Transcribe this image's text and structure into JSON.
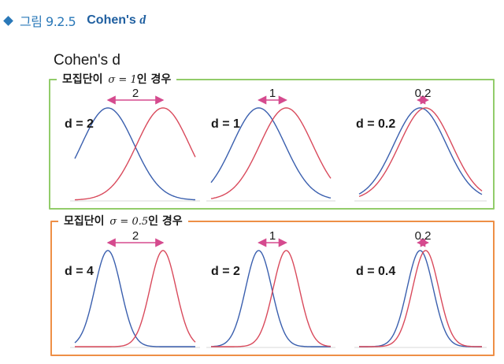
{
  "header": {
    "figure_label": "그림 9.2.5",
    "title_prefix": "Cohen's",
    "title_symbol": "d"
  },
  "main_title": "Cohen's d",
  "colors": {
    "curve_a": "#3a5fae",
    "curve_b": "#d94a5c",
    "arrow": "#d54a8e",
    "panel_1_border": "#92cc6a",
    "panel_2_border": "#ee8f46"
  },
  "panels": [
    {
      "legend_prefix": "모집단이",
      "legend_sigma": "σ = 1",
      "legend_suffix": "인 경우",
      "sigma": 1,
      "plots": [
        {
          "d_label": "d = 2",
          "diff_label": "2",
          "mean_difference": 2,
          "d": 2
        },
        {
          "d_label": "d = 1",
          "diff_label": "1",
          "mean_difference": 1,
          "d": 1
        },
        {
          "d_label": "d = 0.2",
          "diff_label": "0.2",
          "mean_difference": 0.2,
          "d": 0.2
        }
      ]
    },
    {
      "legend_prefix": "모집단이",
      "legend_sigma": "σ = 0.5",
      "legend_suffix": "인 경우",
      "sigma": 0.5,
      "plots": [
        {
          "d_label": "d = 4",
          "diff_label": "2",
          "mean_difference": 2,
          "d": 4
        },
        {
          "d_label": "d = 2",
          "diff_label": "1",
          "mean_difference": 1,
          "d": 2
        },
        {
          "d_label": "d = 0.4",
          "diff_label": "0.2",
          "mean_difference": 0.2,
          "d": 0.4
        }
      ]
    }
  ]
}
